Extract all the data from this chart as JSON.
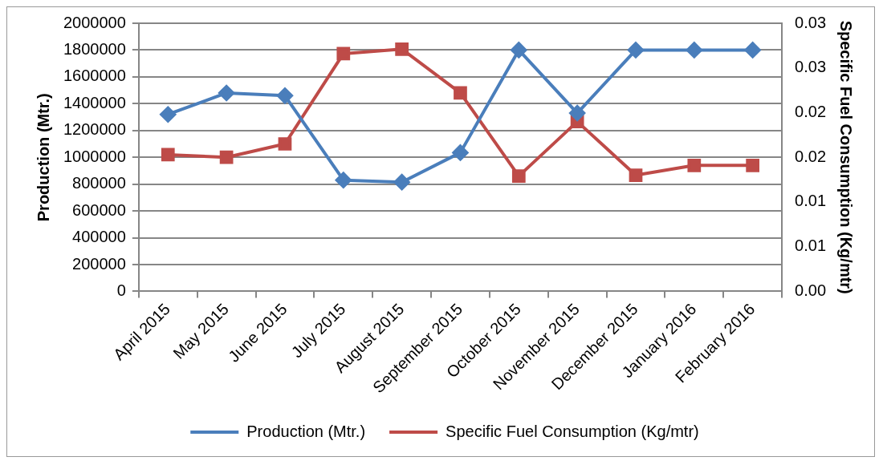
{
  "chart_data": {
    "type": "line",
    "categories": [
      "April 2015",
      "May 2015",
      "June 2015",
      "July 2015",
      "August 2015",
      "September 2015",
      "October 2015",
      "November 2015",
      "December 2015",
      "January 2016",
      "February 2016"
    ],
    "series": [
      {
        "name": "Production (Mtr.)",
        "color": "#4a7ebb",
        "marker": "diamond",
        "values": [
          1320000,
          1480000,
          1460000,
          830000,
          815000,
          1035000,
          1800000,
          1330000,
          1800000,
          1800000,
          1800000
        ]
      },
      {
        "name": "Specific Fuel Consumption (Kg/mtr)",
        "color": "#be4b48",
        "marker": "square",
        "axis": "y2",
        "values": [
          0.0153,
          0.015,
          0.0165,
          0.0266,
          0.0271,
          0.0222,
          0.0129,
          0.019,
          0.013,
          0.0141,
          0.0141
        ]
      }
    ],
    "ylabel": "Production (Mtr.)",
    "y2label": "Specific Fuel Consumption (Kg/mtr)",
    "ylim": [
      0,
      2000000
    ],
    "yticks": [
      0,
      200000,
      400000,
      600000,
      800000,
      1000000,
      1200000,
      1400000,
      1600000,
      1800000,
      2000000
    ],
    "y2lim": [
      0,
      0.03
    ],
    "y2ticks": [
      {
        "value": 0,
        "label": "0.00"
      },
      {
        "value": 0.005,
        "label": "0.01"
      },
      {
        "value": 0.01,
        "label": "0.01"
      },
      {
        "value": 0.015,
        "label": "0.02"
      },
      {
        "value": 0.02,
        "label": "0.02"
      },
      {
        "value": 0.025,
        "label": "0.03"
      },
      {
        "value": 0.03,
        "label": "0.03"
      }
    ],
    "grid": "y",
    "legend": "bottom"
  }
}
